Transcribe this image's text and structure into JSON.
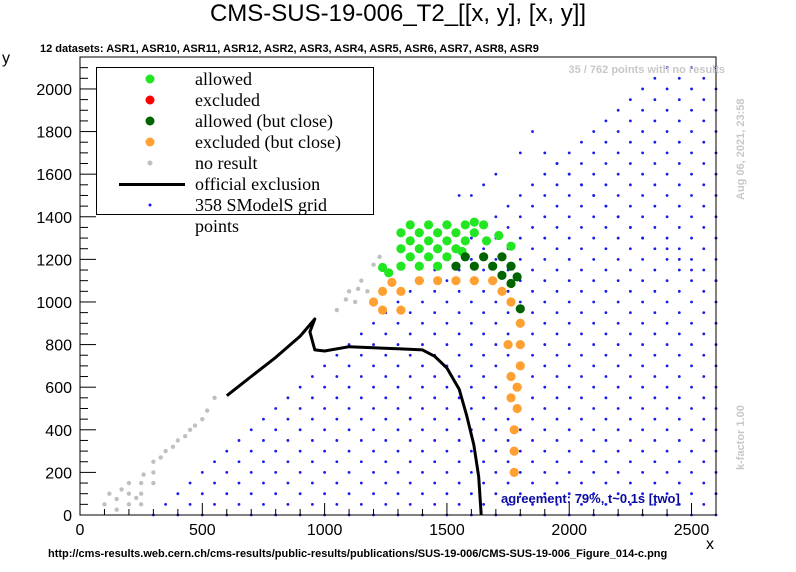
{
  "title": "CMS-SUS-19-006_T2_[[x, y], [x, y]]",
  "subtitle": "12 datasets: ASR1, ASR10, ASR11, ASR12, ASR2, ASR3, ASR4, ASR5, ASR6, ASR7, ASR8, ASR9",
  "no_result_note": "35 / 762 points with no results",
  "date_stamp": "Aug 06, 2021, 23:58",
  "kfactor_note": "k-factor 1.00",
  "agreement_note": "agreement: 79%, t~0.1s [two]",
  "source_url": "http://cms-results.web.cern.ch/cms-results/public-results/publications/SUS-19-006/CMS-SUS-19-006_Figure_014-c.png",
  "colors": {
    "allowed": "#22e622",
    "excluded": "#ff0000",
    "allowed_close": "#006400",
    "excluded_close": "#ffa033",
    "no_result": "#c0c0c0",
    "grid_point": "#1a1aee",
    "official": "#000000"
  },
  "legend": {
    "items": [
      {
        "label": "allowed",
        "symbol": "allowed"
      },
      {
        "label": "excluded",
        "symbol": "excluded"
      },
      {
        "label": "allowed (but close)",
        "symbol": "allowed_close"
      },
      {
        "label": "excluded (but close)",
        "symbol": "excluded_close"
      },
      {
        "label": "no result",
        "symbol": "no_result"
      },
      {
        "label": "official exclusion",
        "symbol": "official"
      },
      {
        "label": "358 SModelS grid points",
        "symbol": "grid_point"
      }
    ]
  },
  "chart_data": {
    "type": "scatter",
    "title": "CMS-SUS-19-006_T2_[[x, y], [x, y]]",
    "xlabel": "x",
    "ylabel": "y",
    "xlim": [
      0,
      2600
    ],
    "ylim": [
      0,
      2150
    ],
    "x_ticks": [
      0,
      500,
      1000,
      1500,
      2000,
      2500
    ],
    "y_ticks": [
      0,
      200,
      400,
      600,
      800,
      1000,
      1200,
      1400,
      1600,
      1800,
      2000
    ],
    "x_minor_step": 100,
    "y_minor_step": 50,
    "official_exclusion": [
      [
        600,
        560
      ],
      [
        700,
        650
      ],
      [
        800,
        740
      ],
      [
        900,
        840
      ],
      [
        960,
        920
      ],
      [
        940,
        860
      ],
      [
        960,
        775
      ],
      [
        1000,
        770
      ],
      [
        1100,
        790
      ],
      [
        1200,
        785
      ],
      [
        1300,
        780
      ],
      [
        1400,
        775
      ],
      [
        1450,
        745
      ],
      [
        1500,
        690
      ],
      [
        1550,
        590
      ],
      [
        1580,
        470
      ],
      [
        1610,
        330
      ],
      [
        1630,
        180
      ],
      [
        1640,
        0
      ]
    ],
    "allowed": [
      [
        1312,
        1168
      ],
      [
        1350,
        1212
      ],
      [
        1312,
        1250
      ],
      [
        1387,
        1168
      ],
      [
        1425,
        1212
      ],
      [
        1387,
        1250
      ],
      [
        1350,
        1287
      ],
      [
        1312,
        1325
      ],
      [
        1462,
        1168
      ],
      [
        1500,
        1212
      ],
      [
        1462,
        1250
      ],
      [
        1425,
        1287
      ],
      [
        1387,
        1325
      ],
      [
        1350,
        1362
      ],
      [
        1537,
        1250
      ],
      [
        1500,
        1287
      ],
      [
        1462,
        1325
      ],
      [
        1425,
        1362
      ],
      [
        1575,
        1287
      ],
      [
        1537,
        1325
      ],
      [
        1500,
        1362
      ],
      [
        1612,
        1325
      ],
      [
        1575,
        1362
      ],
      [
        1650,
        1362
      ],
      [
        1262,
        1137
      ],
      [
        1237,
        1162
      ],
      [
        1762,
        1262
      ],
      [
        1612,
        1375
      ],
      [
        1662,
        1287
      ],
      [
        1712,
        1312
      ],
      [
        1562,
        1237
      ]
    ],
    "allowed_close": [
      [
        1537,
        1168
      ],
      [
        1575,
        1212
      ],
      [
        1612,
        1168
      ],
      [
        1650,
        1212
      ],
      [
        1687,
        1168
      ],
      [
        1725,
        1212
      ],
      [
        1762,
        1168
      ],
      [
        1787,
        1118
      ],
      [
        1800,
        968
      ],
      [
        1762,
        1087
      ],
      [
        1725,
        1125
      ]
    ],
    "excluded_close": [
      [
        1275,
        1092
      ],
      [
        1312,
        1050
      ],
      [
        1237,
        1050
      ],
      [
        1200,
        1000
      ],
      [
        1237,
        962
      ],
      [
        1312,
        962
      ],
      [
        1387,
        1100
      ],
      [
        1462,
        1100
      ],
      [
        1537,
        1100
      ],
      [
        1612,
        1100
      ],
      [
        1687,
        1100
      ],
      [
        1725,
        1050
      ],
      [
        1762,
        1000
      ],
      [
        1800,
        900
      ],
      [
        1800,
        800
      ],
      [
        1800,
        700
      ],
      [
        1787,
        600
      ],
      [
        1787,
        500
      ],
      [
        1775,
        400
      ],
      [
        1775,
        300
      ],
      [
        1775,
        200
      ],
      [
        1750,
        800
      ],
      [
        1762,
        650
      ],
      [
        1762,
        550
      ]
    ],
    "no_result": [
      [
        100,
        50
      ],
      [
        150,
        25
      ],
      [
        150,
        75
      ],
      [
        200,
        50
      ],
      [
        200,
        100
      ],
      [
        200,
        150
      ],
      [
        250,
        100
      ],
      [
        250,
        150
      ],
      [
        300,
        150
      ],
      [
        300,
        200
      ],
      [
        300,
        250
      ],
      [
        250,
        50
      ],
      [
        350,
        300
      ],
      [
        400,
        350
      ],
      [
        450,
        400
      ],
      [
        500,
        450
      ],
      [
        550,
        550
      ],
      [
        1100,
        1050
      ],
      [
        1150,
        1100
      ],
      [
        1125,
        1000
      ],
      [
        1175,
        1050
      ],
      [
        1200,
        1175
      ],
      [
        1225,
        1212
      ],
      [
        1137,
        1062
      ],
      [
        1087,
        1012
      ],
      [
        1050,
        962
      ],
      [
        120,
        100
      ],
      [
        170,
        120
      ],
      [
        230,
        80
      ],
      [
        260,
        190
      ],
      [
        330,
        270
      ],
      [
        380,
        320
      ],
      [
        430,
        370
      ],
      [
        470,
        420
      ],
      [
        520,
        490
      ]
    ],
    "grid_blue_extra": [
      [
        1550,
        1500
      ],
      [
        1600,
        1500
      ],
      [
        1650,
        1550
      ],
      [
        1700,
        1600
      ],
      [
        1800,
        1700
      ],
      [
        1850,
        1800
      ],
      [
        1900,
        1700
      ],
      [
        1950,
        1650
      ],
      [
        2000,
        1600
      ],
      [
        2050,
        1550
      ],
      [
        2100,
        1500
      ],
      [
        2150,
        1450
      ],
      [
        2200,
        1400
      ],
      [
        2250,
        1350
      ],
      [
        2300,
        1300
      ],
      [
        2400,
        1250
      ],
      [
        2450,
        1200
      ],
      [
        2500,
        1150
      ],
      [
        2600,
        1100
      ]
    ]
  }
}
